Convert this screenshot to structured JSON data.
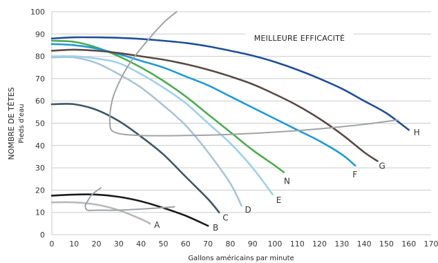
{
  "chart_data": {
    "type": "line",
    "title": "",
    "xlabel": "Gallons américains par minute",
    "ylabel": "NOMBRE DE TÊTES",
    "ylabel_sub": "Pieds d'eau",
    "xlim": [
      0,
      170
    ],
    "ylim": [
      0,
      100
    ],
    "x_ticks": [
      0,
      10,
      20,
      30,
      40,
      50,
      60,
      70,
      80,
      90,
      100,
      110,
      120,
      130,
      140,
      150,
      160,
      170
    ],
    "y_ticks": [
      0,
      10,
      20,
      30,
      40,
      50,
      60,
      70,
      80,
      90,
      100
    ],
    "grid": "horizontal",
    "annotation": "MEILLEURE EFFICACITÉ",
    "series": [
      {
        "name": "A",
        "color": "#b6b8ba",
        "x": [
          0,
          10,
          20,
          30,
          40,
          44
        ],
        "y": [
          14.5,
          14.5,
          13.5,
          11,
          7,
          5
        ]
      },
      {
        "name": "B",
        "color": "#1a1a1a",
        "x": [
          0,
          10,
          20,
          30,
          40,
          50,
          60,
          70
        ],
        "y": [
          17.5,
          18,
          18,
          17,
          15,
          12,
          8.5,
          4
        ]
      },
      {
        "name": "C",
        "color": "#3e5568",
        "x": [
          0,
          10,
          20,
          30,
          40,
          50,
          60,
          70,
          75
        ],
        "y": [
          58.5,
          58.5,
          56,
          51,
          44,
          36,
          26,
          16,
          10
        ]
      },
      {
        "name": "D",
        "color": "#a9c4d6",
        "x": [
          0,
          10,
          20,
          30,
          40,
          50,
          60,
          70,
          80,
          85
        ],
        "y": [
          79.5,
          79.5,
          77,
          72,
          66,
          58,
          49,
          37,
          23,
          13
        ]
      },
      {
        "name": "E",
        "color": "#9ed0ea",
        "x": [
          0,
          10,
          20,
          30,
          40,
          50,
          60,
          70,
          80,
          90,
          99
        ],
        "y": [
          80,
          80,
          79,
          77,
          72,
          66,
          59,
          50,
          41,
          30,
          18
        ]
      },
      {
        "name": "N",
        "color": "#4cab4e",
        "x": [
          0,
          10,
          20,
          30,
          40,
          50,
          60,
          70,
          80,
          90,
          100,
          104
        ],
        "y": [
          87,
          86.5,
          84,
          80,
          75,
          69,
          62,
          54,
          46,
          38,
          31,
          28
        ]
      },
      {
        "name": "F",
        "color": "#1d9ad6",
        "x": [
          0,
          10,
          20,
          30,
          40,
          50,
          60,
          70,
          80,
          90,
          100,
          110,
          120,
          130,
          136
        ],
        "y": [
          85.5,
          85,
          83.5,
          81,
          78,
          75,
          71,
          67,
          62,
          57,
          52,
          47,
          42,
          36,
          31
        ]
      },
      {
        "name": "G",
        "color": "#5a4943",
        "x": [
          0,
          10,
          20,
          30,
          40,
          50,
          60,
          70,
          80,
          90,
          100,
          110,
          120,
          130,
          140,
          146
        ],
        "y": [
          82.5,
          83,
          82.5,
          81.5,
          80,
          78.5,
          76.5,
          74,
          71,
          67.5,
          63,
          58,
          52,
          45,
          37,
          33
        ]
      },
      {
        "name": "H",
        "color": "#1f4e9a",
        "x": [
          0,
          10,
          20,
          30,
          40,
          50,
          60,
          70,
          80,
          90,
          100,
          110,
          120,
          130,
          140,
          150,
          160
        ],
        "y": [
          88,
          88.5,
          88.5,
          88.3,
          87.8,
          87,
          86,
          84.5,
          82.5,
          80.3,
          77.5,
          74,
          70,
          65.5,
          60,
          54.5,
          47
        ]
      },
      {
        "name": "efficiency-best",
        "color": "#9ea3a6",
        "x": [
          56,
          50,
          42,
          35,
          30,
          27,
          26,
          28,
          40,
          60,
          80,
          100,
          120,
          140,
          155
        ],
        "y": [
          100,
          95,
          86,
          77,
          68,
          60,
          51,
          46,
          44.5,
          44.5,
          45,
          46,
          47.5,
          49.5,
          51.5
        ]
      },
      {
        "name": "efficiency-low",
        "color": "#9ea3a6",
        "x": [
          22,
          18,
          16,
          15,
          16,
          20,
          30,
          40,
          55
        ],
        "y": [
          21,
          18,
          15,
          13,
          11,
          11,
          11,
          11.5,
          12.5
        ]
      }
    ]
  }
}
